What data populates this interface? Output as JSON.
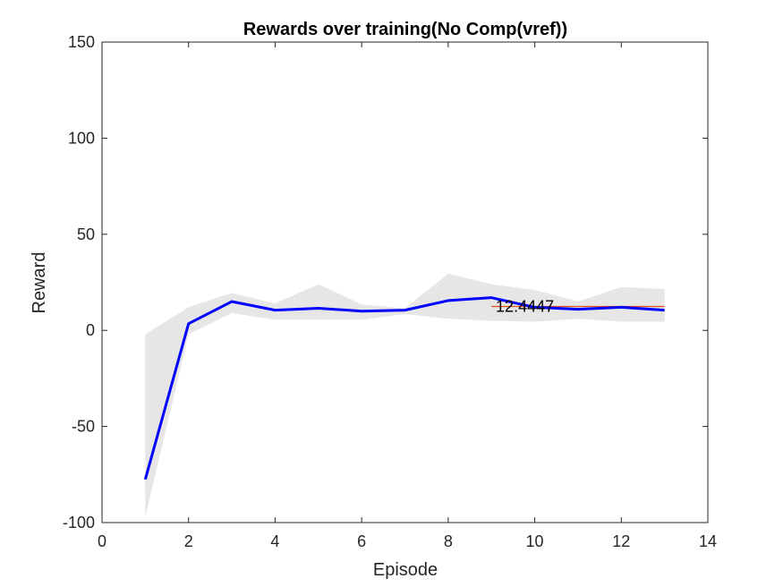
{
  "chart_data": {
    "type": "line",
    "title": "Rewards over training(No Comp(vref))",
    "xlabel": "Episode",
    "ylabel": "Reward",
    "xlim": [
      0,
      14
    ],
    "ylim": [
      -100,
      150
    ],
    "xticks": [
      0,
      2,
      4,
      6,
      8,
      10,
      12,
      14
    ],
    "yticks": [
      -100,
      -50,
      0,
      50,
      100,
      150
    ],
    "grid": false,
    "series": [
      {
        "x": [
          1,
          2,
          3,
          4,
          5,
          6,
          7,
          8,
          9,
          10,
          11,
          12,
          13
        ],
        "values": [
          -77.5,
          3.5,
          15,
          10.5,
          11.5,
          10,
          10.5,
          15.5,
          17,
          12,
          11,
          12,
          10.5
        ],
        "color": "#0000ff"
      }
    ],
    "band": {
      "x": [
        1,
        2,
        3,
        4,
        5,
        6,
        7,
        8,
        9,
        10,
        11,
        12,
        13
      ],
      "upper": [
        -2,
        12,
        19.5,
        14,
        24,
        13.5,
        11.5,
        29.5,
        24,
        21,
        15,
        22.5,
        21.5
      ],
      "lower": [
        -97,
        -2,
        9,
        5.5,
        5.5,
        5.5,
        8.5,
        6,
        5,
        4.5,
        6,
        4.5,
        4.5
      ],
      "color": "#e6e6e6"
    },
    "reference_line": {
      "x": [
        9,
        13
      ],
      "value": 12.4447,
      "color": "#d95319"
    },
    "annotation": {
      "text": "12.4447",
      "x": 9.1,
      "y": 12.4447
    }
  }
}
